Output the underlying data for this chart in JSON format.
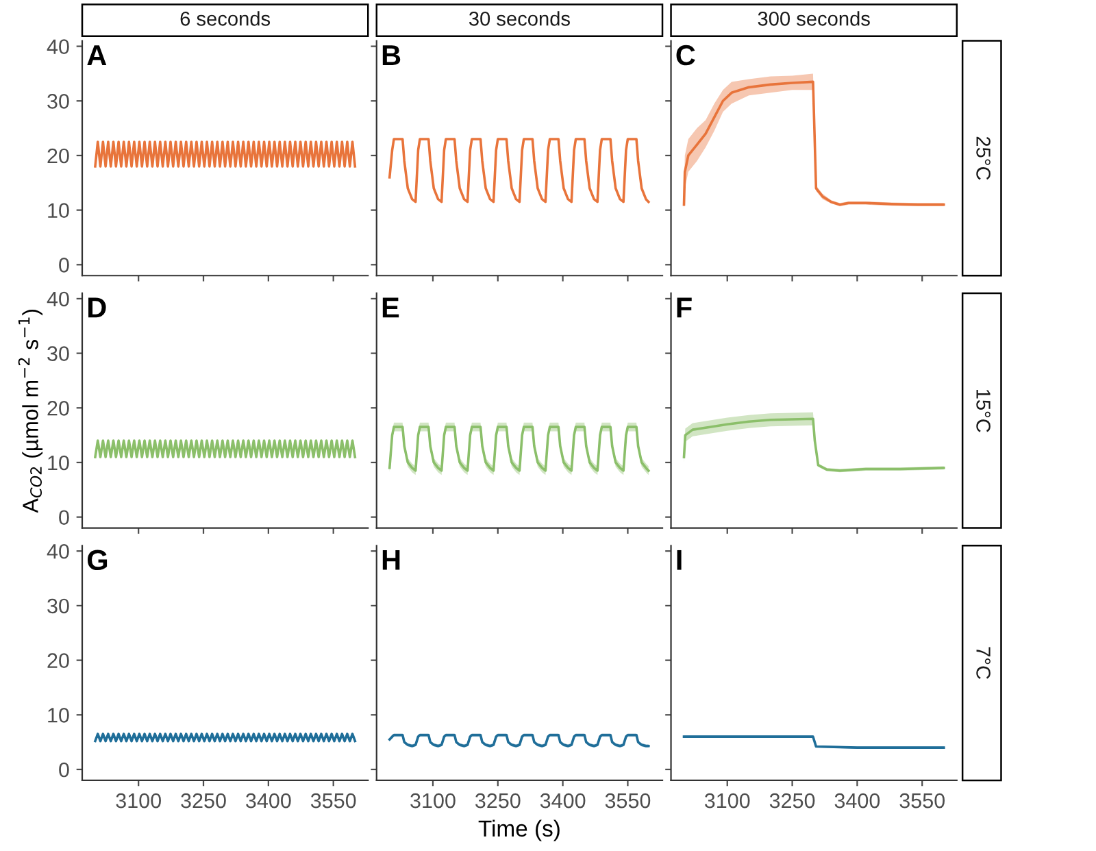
{
  "chart_data": [
    {
      "type": "line",
      "title": "6 seconds",
      "annotations": [
        "A"
      ],
      "tick_labels": "y",
      "xlim": [
        2970,
        3630
      ],
      "xticks": [
        3100,
        3250,
        3400,
        3550
      ],
      "ylim": [
        -2,
        41
      ],
      "yticks": [
        0,
        10,
        20,
        30,
        40
      ],
      "x": [
        3000,
        3006,
        3012,
        3018,
        3024,
        3030,
        3036,
        3042,
        3048,
        3054,
        3060,
        3066,
        3072,
        3078,
        3084,
        3090,
        3096,
        3102,
        3108,
        3114,
        3120,
        3126,
        3132,
        3138,
        3144,
        3150,
        3156,
        3162,
        3168,
        3174,
        3180,
        3186,
        3192,
        3198,
        3204,
        3210,
        3216,
        3222,
        3228,
        3234,
        3240,
        3246,
        3252,
        3258,
        3264,
        3270,
        3276,
        3282,
        3288,
        3294,
        3300,
        3306,
        3312,
        3318,
        3324,
        3330,
        3336,
        3342,
        3348,
        3354,
        3360,
        3366,
        3372,
        3378,
        3384,
        3390,
        3396,
        3402,
        3408,
        3414,
        3420,
        3426,
        3432,
        3438,
        3444,
        3450,
        3456,
        3462,
        3468,
        3474,
        3480,
        3486,
        3492,
        3498,
        3504,
        3510,
        3516,
        3522,
        3528,
        3534,
        3540,
        3546,
        3552,
        3558,
        3564,
        3570,
        3576,
        3582,
        3588,
        3594,
        3600
      ],
      "series": [
        {
          "color": "#e8743b",
          "values": [
            18,
            22.5,
            18,
            22.5,
            18,
            22.5,
            18,
            22.5,
            18,
            22.5,
            18,
            22.5,
            18,
            22.5,
            18,
            22.5,
            18,
            22.5,
            18,
            22.5,
            18,
            22.5,
            18,
            22.5,
            18,
            22.5,
            18,
            22.5,
            18,
            22.5,
            18,
            22.5,
            18,
            22.5,
            18,
            22.5,
            18,
            22.5,
            18,
            22.5,
            18,
            22.5,
            18,
            22.5,
            18,
            22.5,
            18,
            22.5,
            18,
            22.5,
            18,
            22.5,
            18,
            22.5,
            18,
            22.5,
            18,
            22.5,
            18,
            22.5,
            18,
            22.5,
            18,
            22.5,
            18,
            22.5,
            18,
            22.5,
            18,
            22.5,
            18,
            22.5,
            18,
            22.5,
            18,
            22.5,
            18,
            22.5,
            18,
            22.5,
            18,
            22.5,
            18,
            22.5,
            18,
            22.5,
            18,
            22.5,
            18,
            22.5,
            18,
            22.5,
            18,
            22.5,
            18,
            22.5,
            18,
            22.5,
            18,
            22.5,
            18
          ]
        }
      ]
    },
    {
      "type": "line",
      "title": "30 seconds",
      "annotations": [
        "B"
      ],
      "tick_labels": false,
      "xlim": [
        2970,
        3630
      ],
      "xticks": [
        3100,
        3250,
        3400,
        3550
      ],
      "ylim": [
        -2,
        41
      ],
      "yticks": [
        0,
        10,
        20,
        30,
        40
      ],
      "x": [
        3000,
        3006,
        3010,
        3030,
        3034,
        3042,
        3052,
        3060,
        3066,
        3070,
        3090,
        3094,
        3102,
        3112,
        3120,
        3126,
        3130,
        3150,
        3154,
        3162,
        3172,
        3180,
        3186,
        3190,
        3210,
        3214,
        3222,
        3232,
        3240,
        3246,
        3250,
        3270,
        3274,
        3282,
        3292,
        3300,
        3306,
        3310,
        3330,
        3334,
        3342,
        3352,
        3360,
        3366,
        3370,
        3390,
        3394,
        3402,
        3412,
        3420,
        3426,
        3430,
        3450,
        3454,
        3462,
        3472,
        3480,
        3486,
        3490,
        3510,
        3514,
        3522,
        3532,
        3540,
        3546,
        3550,
        3570,
        3574,
        3582,
        3592,
        3598
      ],
      "series": [
        {
          "color": "#e8743b",
          "values": [
            16,
            21,
            23,
            23,
            19,
            14,
            12,
            11.5,
            21,
            23,
            23,
            19,
            14,
            12,
            11.5,
            21,
            23,
            23,
            19,
            14,
            12,
            11.5,
            21,
            23,
            23,
            19,
            14,
            12,
            11.5,
            21,
            23,
            23,
            19,
            14,
            12,
            11.5,
            21,
            23,
            23,
            19,
            14,
            12,
            11.5,
            21,
            23,
            23,
            19,
            14,
            12,
            11.5,
            21,
            23,
            23,
            19,
            14,
            12,
            11.5,
            21,
            23,
            23,
            19,
            14,
            12,
            11.5,
            21,
            23,
            23,
            19,
            14,
            12,
            11.5
          ]
        }
      ]
    },
    {
      "type": "line",
      "title": "300 seconds",
      "y2label": "25°C",
      "annotations": [
        "C"
      ],
      "tick_labels": false,
      "xlim": [
        2970,
        3630
      ],
      "xticks": [
        3100,
        3250,
        3400,
        3550
      ],
      "ylim": [
        -2,
        41
      ],
      "yticks": [
        0,
        10,
        20,
        30,
        40
      ],
      "x": [
        3000,
        3002,
        3010,
        3030,
        3050,
        3070,
        3090,
        3110,
        3150,
        3200,
        3250,
        3298,
        3300,
        3305,
        3320,
        3340,
        3360,
        3380,
        3420,
        3480,
        3540,
        3600
      ],
      "series": [
        {
          "color": "#e8743b",
          "values": [
            11,
            17,
            20,
            22,
            24,
            27,
            30,
            31.5,
            32.5,
            33,
            33.3,
            33.5,
            28,
            14,
            12.5,
            11.5,
            11,
            11.3,
            11.3,
            11.1,
            11,
            11
          ],
          "lower": [
            10,
            14,
            17,
            19,
            21.5,
            24.5,
            28,
            29.5,
            31,
            31.5,
            32,
            32,
            27,
            13.5,
            12,
            11.2,
            10.7,
            11,
            11,
            10.8,
            10.7,
            10.7
          ],
          "upper": [
            12,
            20,
            23,
            25,
            26.5,
            29.5,
            32,
            33.5,
            34,
            34.5,
            34.6,
            35,
            29,
            14.5,
            13,
            11.8,
            11.3,
            11.6,
            11.6,
            11.4,
            11.3,
            11.3
          ]
        }
      ]
    },
    {
      "type": "line",
      "annotations": [
        "D"
      ],
      "ylabel": "A$_{CO2}$ (µmol m$^{−2}$ s$^{−1}$)",
      "tick_labels": "y",
      "xlim": [
        2970,
        3630
      ],
      "xticks": [
        3100,
        3250,
        3400,
        3550
      ],
      "ylim": [
        -2,
        41
      ],
      "yticks": [
        0,
        10,
        20,
        30,
        40
      ],
      "x": [
        3000,
        3006,
        3012,
        3018,
        3024,
        3030,
        3036,
        3042,
        3048,
        3054,
        3060,
        3066,
        3072,
        3078,
        3084,
        3090,
        3096,
        3102,
        3108,
        3114,
        3120,
        3126,
        3132,
        3138,
        3144,
        3150,
        3156,
        3162,
        3168,
        3174,
        3180,
        3186,
        3192,
        3198,
        3204,
        3210,
        3216,
        3222,
        3228,
        3234,
        3240,
        3246,
        3252,
        3258,
        3264,
        3270,
        3276,
        3282,
        3288,
        3294,
        3300,
        3306,
        3312,
        3318,
        3324,
        3330,
        3336,
        3342,
        3348,
        3354,
        3360,
        3366,
        3372,
        3378,
        3384,
        3390,
        3396,
        3402,
        3408,
        3414,
        3420,
        3426,
        3432,
        3438,
        3444,
        3450,
        3456,
        3462,
        3468,
        3474,
        3480,
        3486,
        3492,
        3498,
        3504,
        3510,
        3516,
        3522,
        3528,
        3534,
        3540,
        3546,
        3552,
        3558,
        3564,
        3570,
        3576,
        3582,
        3588,
        3594,
        3600
      ],
      "series": [
        {
          "color": "#8bbf6a",
          "values": [
            11,
            14,
            11,
            14,
            11,
            14,
            11,
            14,
            11,
            14,
            11,
            14,
            11,
            14,
            11,
            14,
            11,
            14,
            11,
            14,
            11,
            14,
            11,
            14,
            11,
            14,
            11,
            14,
            11,
            14,
            11,
            14,
            11,
            14,
            11,
            14,
            11,
            14,
            11,
            14,
            11,
            14,
            11,
            14,
            11,
            14,
            11,
            14,
            11,
            14,
            11,
            14,
            11,
            14,
            11,
            14,
            11,
            14,
            11,
            14,
            11,
            14,
            11,
            14,
            11,
            14,
            11,
            14,
            11,
            14,
            11,
            14,
            11,
            14,
            11,
            14,
            11,
            14,
            11,
            14,
            11,
            14,
            11,
            14,
            11,
            14,
            11,
            14,
            11,
            14,
            11,
            14,
            11,
            14,
            11,
            14,
            11,
            14,
            11,
            14,
            11
          ]
        }
      ]
    },
    {
      "type": "line",
      "annotations": [
        "E"
      ],
      "tick_labels": false,
      "xlim": [
        2970,
        3630
      ],
      "xticks": [
        3100,
        3250,
        3400,
        3550
      ],
      "ylim": [
        -2,
        41
      ],
      "yticks": [
        0,
        10,
        20,
        30,
        40
      ],
      "x": [
        3000,
        3006,
        3010,
        3030,
        3034,
        3042,
        3052,
        3060,
        3066,
        3070,
        3090,
        3094,
        3102,
        3112,
        3120,
        3126,
        3130,
        3150,
        3154,
        3162,
        3172,
        3180,
        3186,
        3190,
        3210,
        3214,
        3222,
        3232,
        3240,
        3246,
        3250,
        3270,
        3274,
        3282,
        3292,
        3300,
        3306,
        3310,
        3330,
        3334,
        3342,
        3352,
        3360,
        3366,
        3370,
        3390,
        3394,
        3402,
        3412,
        3420,
        3426,
        3430,
        3450,
        3454,
        3462,
        3472,
        3480,
        3486,
        3490,
        3510,
        3514,
        3522,
        3532,
        3540,
        3546,
        3550,
        3570,
        3574,
        3582,
        3592,
        3598
      ],
      "series": [
        {
          "color": "#8bbf6a",
          "values": [
            9,
            15,
            16.5,
            16.5,
            13,
            10,
            9,
            8.5,
            15,
            16.5,
            16.5,
            13,
            10,
            9,
            8.5,
            15,
            16.5,
            16.5,
            13,
            10,
            9,
            8.5,
            15,
            16.5,
            16.5,
            13,
            10,
            9,
            8.5,
            15,
            16.5,
            16.5,
            13,
            10,
            9,
            8.5,
            15,
            16.5,
            16.5,
            13,
            10,
            9,
            8.5,
            15,
            16.5,
            16.5,
            13,
            10,
            9,
            8.5,
            15,
            16.5,
            16.5,
            13,
            10,
            9,
            8.5,
            15,
            16.5,
            16.5,
            13,
            10,
            9,
            8.5,
            15,
            16.5,
            16.5,
            13,
            10,
            9,
            8.5
          ],
          "lower": [
            8.2,
            14.2,
            15.7,
            15.7,
            12.2,
            9.2,
            8.2,
            7.7,
            14.2,
            15.7,
            15.7,
            12.2,
            9.2,
            8.2,
            7.7,
            14.2,
            15.7,
            15.7,
            12.2,
            9.2,
            8.2,
            7.7,
            14.2,
            15.7,
            15.7,
            12.2,
            9.2,
            8.2,
            7.7,
            14.2,
            15.7,
            15.7,
            12.2,
            9.2,
            8.2,
            7.7,
            14.2,
            15.7,
            15.7,
            12.2,
            9.2,
            8.2,
            7.7,
            14.2,
            15.7,
            15.7,
            12.2,
            9.2,
            8.2,
            7.7,
            14.2,
            15.7,
            15.7,
            12.2,
            9.2,
            8.2,
            7.7,
            14.2,
            15.7,
            15.7,
            12.2,
            9.2,
            8.2,
            7.7,
            14.2,
            15.7,
            15.7,
            12.2,
            9.2,
            8.2,
            7.7
          ],
          "upper": [
            9.8,
            15.8,
            17.3,
            17.3,
            13.8,
            10.8,
            9.8,
            9.3,
            15.8,
            17.3,
            17.3,
            13.8,
            10.8,
            9.8,
            9.3,
            15.8,
            17.3,
            17.3,
            13.8,
            10.8,
            9.8,
            9.3,
            15.8,
            17.3,
            17.3,
            13.8,
            10.8,
            9.8,
            9.3,
            15.8,
            17.3,
            17.3,
            13.8,
            10.8,
            9.8,
            9.3,
            15.8,
            17.3,
            17.3,
            13.8,
            10.8,
            9.8,
            9.3,
            15.8,
            17.3,
            17.3,
            13.8,
            10.8,
            9.8,
            9.3,
            15.8,
            17.3,
            17.3,
            13.8,
            10.8,
            9.8,
            9.3,
            15.8,
            17.3,
            17.3,
            13.8,
            10.8,
            9.8,
            9.3,
            15.8,
            17.3,
            17.3,
            13.8,
            10.8,
            9.8,
            9.3
          ]
        }
      ]
    },
    {
      "type": "line",
      "y2label": "15°C",
      "annotations": [
        "F"
      ],
      "tick_labels": false,
      "xlim": [
        2970,
        3630
      ],
      "xticks": [
        3100,
        3250,
        3400,
        3550
      ],
      "ylim": [
        -2,
        41
      ],
      "yticks": [
        0,
        10,
        20,
        30,
        40
      ],
      "x": [
        3000,
        3003,
        3020,
        3060,
        3100,
        3150,
        3200,
        3298,
        3302,
        3310,
        3330,
        3360,
        3420,
        3500,
        3600
      ],
      "series": [
        {
          "color": "#8bbf6a",
          "values": [
            11,
            15,
            16,
            16.5,
            17,
            17.5,
            17.8,
            18,
            14,
            9.5,
            8.7,
            8.5,
            8.8,
            8.8,
            9
          ],
          "lower": [
            10,
            13.8,
            14.8,
            15.3,
            15.8,
            16.3,
            16.6,
            16.8,
            13.5,
            9.2,
            8.4,
            8.2,
            8.5,
            8.5,
            8.7
          ],
          "upper": [
            12,
            16.2,
            17.2,
            17.7,
            18.2,
            18.7,
            19,
            19.2,
            14.5,
            9.8,
            9,
            8.8,
            9.1,
            9.1,
            9.3
          ]
        }
      ]
    },
    {
      "type": "line",
      "annotations": [
        "G"
      ],
      "xlim": [
        2970,
        3630
      ],
      "xticks": [
        3100,
        3250,
        3400,
        3550
      ],
      "ylim": [
        -2,
        41
      ],
      "yticks": [
        0,
        10,
        20,
        30,
        40
      ],
      "x": [
        3000,
        3006,
        3012,
        3018,
        3024,
        3030,
        3036,
        3042,
        3048,
        3054,
        3060,
        3066,
        3072,
        3078,
        3084,
        3090,
        3096,
        3102,
        3108,
        3114,
        3120,
        3126,
        3132,
        3138,
        3144,
        3150,
        3156,
        3162,
        3168,
        3174,
        3180,
        3186,
        3192,
        3198,
        3204,
        3210,
        3216,
        3222,
        3228,
        3234,
        3240,
        3246,
        3252,
        3258,
        3264,
        3270,
        3276,
        3282,
        3288,
        3294,
        3300,
        3306,
        3312,
        3318,
        3324,
        3330,
        3336,
        3342,
        3348,
        3354,
        3360,
        3366,
        3372,
        3378,
        3384,
        3390,
        3396,
        3402,
        3408,
        3414,
        3420,
        3426,
        3432,
        3438,
        3444,
        3450,
        3456,
        3462,
        3468,
        3474,
        3480,
        3486,
        3492,
        3498,
        3504,
        3510,
        3516,
        3522,
        3528,
        3534,
        3540,
        3546,
        3552,
        3558,
        3564,
        3570,
        3576,
        3582,
        3588,
        3594,
        3600
      ],
      "series": [
        {
          "color": "#1f6e99",
          "values": [
            5.2,
            6.5,
            5.2,
            6.5,
            5.2,
            6.5,
            5.2,
            6.5,
            5.2,
            6.5,
            5.2,
            6.5,
            5.2,
            6.5,
            5.2,
            6.5,
            5.2,
            6.5,
            5.2,
            6.5,
            5.2,
            6.5,
            5.2,
            6.5,
            5.2,
            6.5,
            5.2,
            6.5,
            5.2,
            6.5,
            5.2,
            6.5,
            5.2,
            6.5,
            5.2,
            6.5,
            5.2,
            6.5,
            5.2,
            6.5,
            5.2,
            6.5,
            5.2,
            6.5,
            5.2,
            6.5,
            5.2,
            6.5,
            5.2,
            6.5,
            5.2,
            6.5,
            5.2,
            6.5,
            5.2,
            6.5,
            5.2,
            6.5,
            5.2,
            6.5,
            5.2,
            6.5,
            5.2,
            6.5,
            5.2,
            6.5,
            5.2,
            6.5,
            5.2,
            6.5,
            5.2,
            6.5,
            5.2,
            6.5,
            5.2,
            6.5,
            5.2,
            6.5,
            5.2,
            6.5,
            5.2,
            6.5,
            5.2,
            6.5,
            5.2,
            6.5,
            5.2,
            6.5,
            5.2,
            6.5,
            5.2,
            6.5,
            5.2,
            6.5,
            5.2,
            6.5,
            5.2,
            6.5,
            5.2,
            6.5,
            5.2
          ]
        }
      ]
    },
    {
      "type": "line",
      "annotations": [
        "H"
      ],
      "xlabel": "Time (s)",
      "tick_labels": "x",
      "xlim": [
        2970,
        3630
      ],
      "xticks": [
        3100,
        3250,
        3400,
        3550
      ],
      "ylim": [
        -2,
        41
      ],
      "yticks": [
        0,
        10,
        20,
        30,
        40
      ],
      "x": [
        3000,
        3006,
        3010,
        3030,
        3034,
        3042,
        3052,
        3060,
        3066,
        3070,
        3090,
        3094,
        3102,
        3112,
        3120,
        3126,
        3130,
        3150,
        3154,
        3162,
        3172,
        3180,
        3186,
        3190,
        3210,
        3214,
        3222,
        3232,
        3240,
        3246,
        3250,
        3270,
        3274,
        3282,
        3292,
        3300,
        3306,
        3310,
        3330,
        3334,
        3342,
        3352,
        3360,
        3366,
        3370,
        3390,
        3394,
        3402,
        3412,
        3420,
        3426,
        3430,
        3450,
        3454,
        3462,
        3472,
        3480,
        3486,
        3490,
        3510,
        3514,
        3522,
        3532,
        3540,
        3546,
        3550,
        3570,
        3574,
        3582,
        3592,
        3598
      ],
      "series": [
        {
          "color": "#1f6e99",
          "values": [
            5.5,
            6,
            6.3,
            6.3,
            5,
            4.5,
            4.3,
            4.5,
            6,
            6.3,
            6.3,
            5,
            4.5,
            4.3,
            4.5,
            6,
            6.3,
            6.3,
            5,
            4.5,
            4.3,
            4.5,
            6,
            6.3,
            6.3,
            5,
            4.5,
            4.3,
            4.5,
            6,
            6.3,
            6.3,
            5,
            4.5,
            4.3,
            4.5,
            6,
            6.3,
            6.3,
            5,
            4.5,
            4.3,
            4.5,
            6,
            6.3,
            6.3,
            5,
            4.5,
            4.3,
            4.5,
            6,
            6.3,
            6.3,
            5,
            4.5,
            4.3,
            4.5,
            6,
            6.3,
            6.3,
            5,
            4.5,
            4.3,
            4.5,
            6,
            6.3,
            6.3,
            5,
            4.5,
            4.3,
            4.3
          ],
          "lower": [
            5.2,
            5.7,
            6.0,
            6.0,
            4.7,
            4.2,
            4.0,
            4.2,
            5.7,
            6.0,
            6.0,
            4.7,
            4.2,
            4.0,
            4.2,
            5.7,
            6.0,
            6.0,
            4.7,
            4.2,
            4.0,
            4.2,
            5.7,
            6.0,
            6.0,
            4.7,
            4.2,
            4.0,
            4.2,
            5.7,
            6.0,
            6.0,
            4.7,
            4.2,
            4.0,
            4.2,
            5.7,
            6.0,
            6.0,
            4.7,
            4.2,
            4.0,
            4.2,
            5.7,
            6.0,
            6.0,
            4.7,
            4.2,
            4.0,
            4.2,
            5.7,
            6.0,
            6.0,
            4.7,
            4.2,
            4.0,
            4.2,
            5.7,
            6.0,
            6.0,
            4.7,
            4.2,
            4.0,
            4.2,
            5.7,
            6.0,
            6.0,
            4.7,
            4.2,
            4.0,
            4.0
          ],
          "upper": [
            5.8,
            6.3,
            6.6,
            6.6,
            5.3,
            4.8,
            4.6,
            4.8,
            6.3,
            6.6,
            6.6,
            5.3,
            4.8,
            4.6,
            4.8,
            6.3,
            6.6,
            6.6,
            5.3,
            4.8,
            4.6,
            4.8,
            6.3,
            6.6,
            6.6,
            5.3,
            4.8,
            4.6,
            4.8,
            6.3,
            6.6,
            6.6,
            5.3,
            4.8,
            4.6,
            4.8,
            6.3,
            6.6,
            6.6,
            5.3,
            4.8,
            4.6,
            4.8,
            6.3,
            6.6,
            6.6,
            5.3,
            4.8,
            4.6,
            4.8,
            6.3,
            6.6,
            6.6,
            5.3,
            4.8,
            4.6,
            4.8,
            6.3,
            6.6,
            6.6,
            5.3,
            4.8,
            4.6,
            4.8,
            6.3,
            6.6,
            6.6,
            5.3,
            4.8,
            4.6,
            4.6
          ]
        }
      ]
    },
    {
      "type": "line",
      "y2label": "7°C",
      "annotations": [
        "I"
      ],
      "tick_labels": "x",
      "xlim": [
        2970,
        3630
      ],
      "xticks": [
        3100,
        3250,
        3400,
        3550
      ],
      "ylim": [
        -2,
        41
      ],
      "yticks": [
        0,
        10,
        20,
        30,
        40
      ],
      "x": [
        3000,
        3100,
        3200,
        3298,
        3305,
        3400,
        3500,
        3600
      ],
      "series": [
        {
          "color": "#1f6e99",
          "values": [
            6,
            6,
            6,
            6,
            4.2,
            4,
            4,
            4
          ],
          "lower": [
            5.8,
            5.8,
            5.8,
            5.8,
            4,
            3.8,
            3.8,
            3.8
          ],
          "upper": [
            6.2,
            6.2,
            6.2,
            6.2,
            4.4,
            4.2,
            4.2,
            4.2
          ]
        }
      ]
    }
  ]
}
